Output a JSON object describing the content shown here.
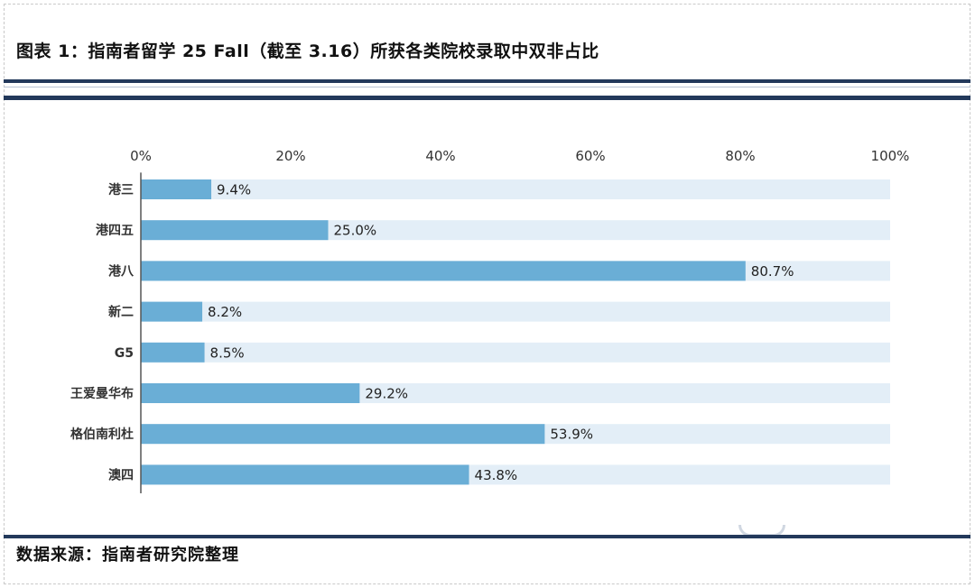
{
  "header": {
    "title": "图表 1：指南者留学 25 Fall（截至 3.16）所获各类院校录取中双非占比"
  },
  "footer": {
    "source": "数据来源：指南者研究院整理"
  },
  "colors": {
    "bar": "#6aaed6",
    "track": "#e3eef7",
    "rule": "#23395b",
    "axis": "#555555"
  },
  "chart_data": {
    "type": "bar",
    "orientation": "horizontal",
    "title": "",
    "xlabel": "",
    "ylabel": "",
    "xlim": [
      0,
      100
    ],
    "x_ticks": [
      "0%",
      "20%",
      "40%",
      "60%",
      "80%",
      "100%"
    ],
    "x_tick_values": [
      0,
      20,
      40,
      60,
      80,
      100
    ],
    "categories": [
      "港三",
      "港四五",
      "港八",
      "新二",
      "G5",
      "王爱曼华布",
      "格伯南利杜",
      "澳四"
    ],
    "values": [
      9.4,
      25.0,
      80.7,
      8.2,
      8.5,
      29.2,
      53.9,
      43.8
    ],
    "value_labels": [
      "9.4%",
      "25.0%",
      "80.7%",
      "8.2%",
      "8.5%",
      "29.2%",
      "53.9%",
      "43.8%"
    ],
    "grid": false,
    "legend": "none",
    "background_track": true
  }
}
